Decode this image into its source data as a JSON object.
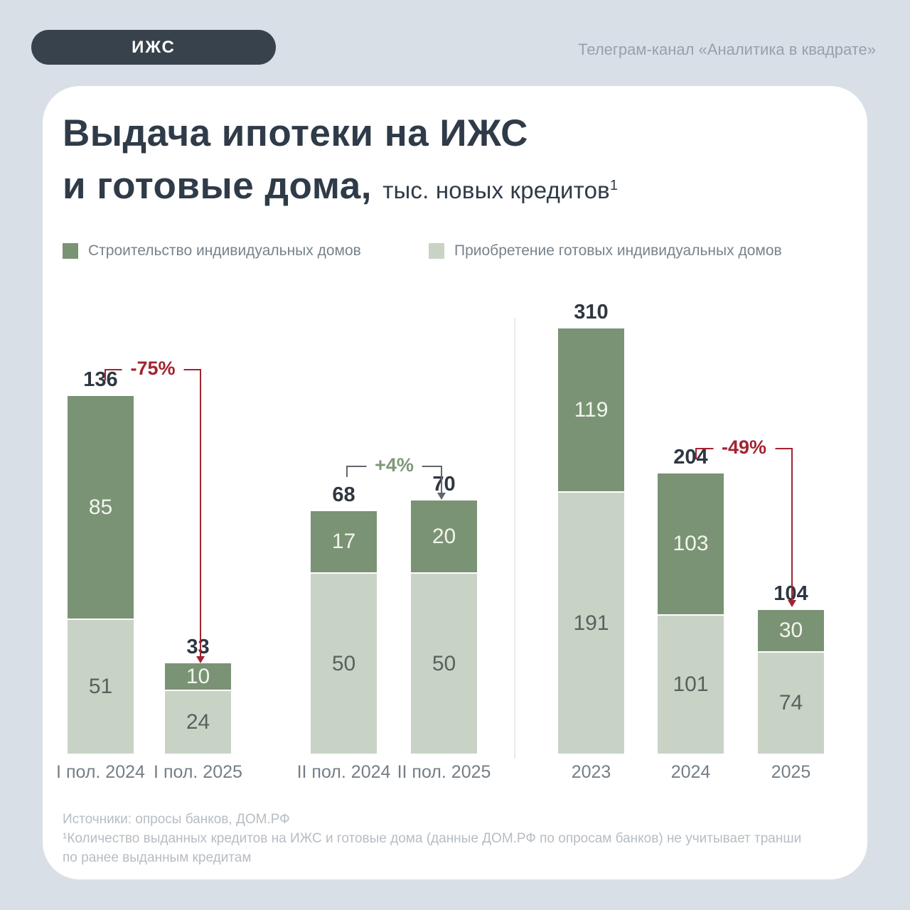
{
  "header": {
    "badge": "ИЖС",
    "channel": "Телеграм-канал «Аналитика в квадрате»"
  },
  "title": {
    "line1": "Выдача ипотеки на ИЖС",
    "line2_bold": "и готовые дома,",
    "line2_rest": "тыс. новых кредитов",
    "footnote_mark": "1"
  },
  "legend": {
    "items": [
      {
        "label": "Строительство индивидуальных домов",
        "color": "#7a9374"
      },
      {
        "label": "Приобретение готовых индивидуальных домов",
        "color": "#c8d3c6"
      }
    ]
  },
  "chart_data": {
    "type": "bar",
    "stacked": true,
    "unit": "тыс. новых кредитов",
    "series_names": [
      "Строительство индивидуальных домов",
      "Приобретение готовых индивидуальных домов"
    ],
    "colors": {
      "construction": "#7a9374",
      "purchase": "#c8d3c6",
      "negative": "#a22430",
      "positive_text": "#7f9878",
      "neutral_line": "#5f666b"
    },
    "groups": [
      {
        "bars": [
          {
            "category": "I пол. 2024",
            "total": 136,
            "construction": 85,
            "purchase": 51
          },
          {
            "category": "I пол. 2025",
            "total": 33,
            "construction": 10,
            "purchase": 24
          }
        ],
        "annotation": {
          "text": "-75%",
          "style": "negative",
          "from_category": "I пол. 2024",
          "to_category": "I пол. 2025"
        }
      },
      {
        "bars": [
          {
            "category": "II пол. 2024",
            "total": 68,
            "construction": 17,
            "purchase": 50
          },
          {
            "category": "II пол. 2025",
            "total": 70,
            "construction": 20,
            "purchase": 50
          }
        ],
        "annotation": {
          "text": "+4%",
          "style": "positive",
          "from_category": "II пол. 2024",
          "to_category": "II пол. 2025"
        }
      },
      {
        "bars": [
          {
            "category": "2023",
            "total": 310,
            "construction": 119,
            "purchase": 191
          },
          {
            "category": "2024",
            "total": 204,
            "construction": 103,
            "purchase": 101
          },
          {
            "category": "2025",
            "total": 104,
            "construction": 30,
            "purchase": 74
          }
        ],
        "annotation": {
          "text": "-49%",
          "style": "negative",
          "from_category": "2024",
          "to_category": "2025"
        }
      }
    ]
  },
  "footer": {
    "sources": "Источники: опросы банков, ДОМ.РФ",
    "footnote_line1": "¹Количество выданных кредитов на ИЖС и готовые дома (данные ДОМ.РФ по опросам банков) не учитывает транши",
    "footnote_line2": "по ранее выданным кредитам"
  }
}
